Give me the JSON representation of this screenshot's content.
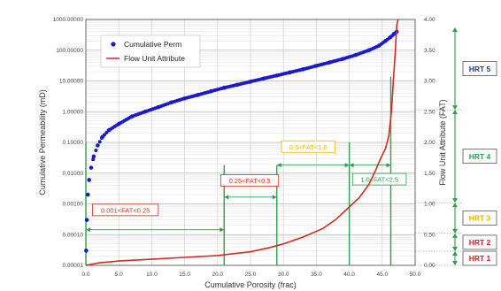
{
  "chart_data": {
    "type": "line",
    "xlabel": "Cumulative Porosity (frac)",
    "ylabel": "Cumulative Permeability (mD)",
    "y2label": "Flow Unit Attribute (FAT)",
    "xlim": [
      0,
      50
    ],
    "ylim": [
      1e-05,
      1000
    ],
    "y2lim": [
      0,
      4
    ],
    "yscale": "log",
    "grid": true,
    "legend_position": "top-left",
    "x_ticks": [
      "0.0",
      "5.0",
      "10.0",
      "15.0",
      "20.0",
      "25.0",
      "30.0",
      "35.0",
      "40.0",
      "45.0",
      "50.0"
    ],
    "y_ticks": [
      "0.00001",
      "0.00010",
      "0.00100",
      "0.01000",
      "0.10000",
      "1.00000",
      "10.00000",
      "100.00000",
      "1000.00000"
    ],
    "y2_ticks": [
      "0.00",
      "0.50",
      "1.00",
      "1.50",
      "2.00",
      "2.50",
      "3.00",
      "3.50",
      "4.00"
    ],
    "colors": {
      "perm": "#1a1acc",
      "fat": "#d42a1e",
      "green": "#2e9e4e"
    },
    "series": [
      {
        "name": "Cumulative Perm",
        "axis": "left",
        "marker": "circle",
        "x": [
          0.05,
          0.15,
          0.3,
          0.5,
          0.8,
          1.2,
          1.8,
          2.5,
          3.5,
          5,
          7,
          9,
          11,
          13,
          15,
          17,
          19,
          21,
          23,
          25,
          27,
          29,
          31,
          33,
          35,
          37,
          39,
          41,
          43,
          44.5,
          45.5,
          46.3,
          46.8,
          47.2
        ],
        "y": [
          3e-05,
          0.0003,
          0.002,
          0.006,
          0.015,
          0.035,
          0.08,
          0.15,
          0.25,
          0.4,
          0.7,
          1.0,
          1.4,
          2.0,
          2.7,
          3.5,
          4.6,
          6.0,
          7.5,
          9.5,
          12,
          15,
          19,
          24,
          31,
          40,
          52,
          70,
          100,
          140,
          200,
          270,
          340,
          400
        ]
      },
      {
        "name": "Flow Unit Attribute",
        "axis": "right",
        "x": [
          0,
          2,
          5,
          10,
          15,
          20,
          25,
          28,
          30,
          33,
          36,
          38,
          40,
          41.5,
          43,
          44,
          44.8,
          45.5,
          46,
          46.4,
          46.7,
          47,
          47.2,
          47.4
        ],
        "y": [
          0,
          0.04,
          0.07,
          0.1,
          0.13,
          0.16,
          0.22,
          0.29,
          0.35,
          0.46,
          0.6,
          0.75,
          0.95,
          1.1,
          1.32,
          1.55,
          1.75,
          1.9,
          2.1,
          2.5,
          3.0,
          3.5,
          3.9,
          4.0
        ]
      }
    ],
    "annotations": [
      {
        "text": "0.001<FAT<0.25",
        "color": "#d42a1e",
        "x1": 0,
        "x2": 21,
        "y2val": 0.58,
        "labelX": 1.0,
        "labelY2": 0.88
      },
      {
        "text": "0.25<FAT<0.5",
        "color": "#d42a1e",
        "x1": 21,
        "x2": 29,
        "y2val": 1.11,
        "labelX": 20.5,
        "labelY2": 1.36
      },
      {
        "text": "0.5<FAT<1.0",
        "color": "#e8b400",
        "x1": 29,
        "x2": 40,
        "y2val": 1.63,
        "labelX": 29.7,
        "labelY2": 1.91
      },
      {
        "text": "1.0<FAT<2.5",
        "color": "#2e9e4e",
        "x1": 40,
        "x2": 46.3,
        "y2val": 1.63,
        "labelX": 40.5,
        "labelY2": 1.38
      }
    ],
    "vlines": [
      {
        "x": 0,
        "y2max": 2.0
      },
      {
        "x": 21,
        "y2max": 1.63
      },
      {
        "x": 29,
        "y2max": 1.63
      },
      {
        "x": 40,
        "y2max": 2.0
      },
      {
        "x": 46.3,
        "y2max": 3.07
      }
    ],
    "hrt_units": [
      {
        "label": "HRT 5",
        "from": 2.53,
        "to": 3.87,
        "color": "#1f3f8a"
      },
      {
        "label": "HRT 4",
        "from": 1.02,
        "to": 2.53,
        "color": "#2e9e4e"
      },
      {
        "label": "HRT 3",
        "from": 0.52,
        "to": 1.02,
        "color": "#e8b400"
      },
      {
        "label": "HRT 2",
        "from": 0.23,
        "to": 0.52,
        "color": "#c0282c"
      },
      {
        "label": "HRT 1",
        "from": 0.0,
        "to": 0.23,
        "color": "#c0282c"
      }
    ]
  }
}
